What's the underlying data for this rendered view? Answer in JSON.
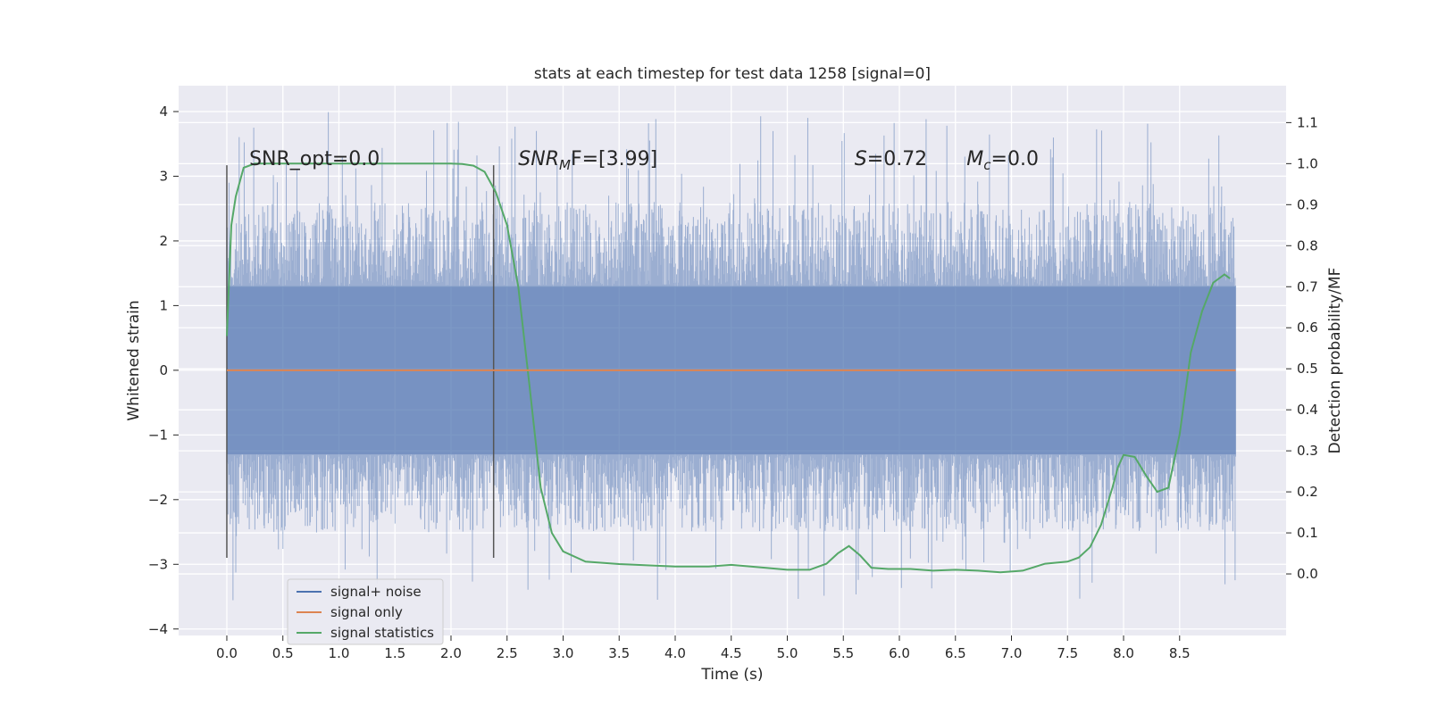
{
  "chart_data": {
    "type": "line",
    "title": "stats at each timestep for test data 1258 [signal=0]",
    "xlabel": "Time (s)",
    "ylabel": "Whitened strain",
    "y2label": "Detection probability/MF",
    "xlim": [
      -0.43,
      9.45
    ],
    "ylim": [
      -4.1,
      4.4
    ],
    "y2lim": [
      -0.15,
      1.19
    ],
    "grid": true,
    "legend_position": "bottom-left",
    "x_ticks": [
      0.0,
      0.5,
      1.0,
      1.5,
      2.0,
      2.5,
      3.0,
      3.5,
      4.0,
      4.5,
      5.0,
      5.5,
      6.0,
      6.5,
      7.0,
      7.5,
      8.0,
      8.5
    ],
    "x_tick_labels": [
      "0.0",
      "0.5",
      "1.0",
      "1.5",
      "2.0",
      "2.5",
      "3.0",
      "3.5",
      "4.0",
      "4.5",
      "5.0",
      "5.5",
      "6.0",
      "6.5",
      "7.0",
      "7.5",
      "8.0",
      "8.5"
    ],
    "y_ticks": [
      -4,
      -3,
      -2,
      -1,
      0,
      1,
      2,
      3,
      4
    ],
    "y_tick_labels": [
      "−4",
      "−3",
      "−2",
      "−1",
      "0",
      "1",
      "2",
      "3",
      "4"
    ],
    "y2_ticks": [
      0.0,
      0.1,
      0.2,
      0.3,
      0.4,
      0.5,
      0.6,
      0.7,
      0.8,
      0.9,
      1.0,
      1.1
    ],
    "y2_tick_labels": [
      "0.0",
      "0.1",
      "0.2",
      "0.3",
      "0.4",
      "0.5",
      "0.6",
      "0.7",
      "0.8",
      "0.9",
      "1.0",
      "1.1"
    ],
    "noise": {
      "t_start": 0.0,
      "t_end": 9.0,
      "n_samples": 1800,
      "core_amplitude": 1.3,
      "typical_max": 2.6,
      "typical_min": -2.5,
      "peak_max": 4.0,
      "peak_min": -3.6,
      "color": "#4c72b0"
    },
    "series": [
      {
        "name": "signal statistics",
        "axis": "right",
        "color": "#55a868",
        "x": [
          0.0,
          0.04,
          0.08,
          0.15,
          0.25,
          0.5,
          1.0,
          1.5,
          2.0,
          2.1,
          2.2,
          2.3,
          2.4,
          2.5,
          2.6,
          2.7,
          2.8,
          2.9,
          3.0,
          3.2,
          3.5,
          4.0,
          4.3,
          4.5,
          4.8,
          5.0,
          5.2,
          5.35,
          5.45,
          5.55,
          5.65,
          5.75,
          5.9,
          6.1,
          6.3,
          6.5,
          6.7,
          6.9,
          7.1,
          7.3,
          7.5,
          7.6,
          7.7,
          7.8,
          7.9,
          7.95,
          8.0,
          8.1,
          8.2,
          8.3,
          8.4,
          8.5,
          8.6,
          8.7,
          8.8,
          8.9,
          8.95
        ],
        "values": [
          0.58,
          0.85,
          0.92,
          0.99,
          1.0,
          1.0,
          1.0,
          1.0,
          1.0,
          0.999,
          0.995,
          0.98,
          0.93,
          0.85,
          0.7,
          0.46,
          0.21,
          0.1,
          0.055,
          0.03,
          0.024,
          0.018,
          0.018,
          0.022,
          0.015,
          0.01,
          0.01,
          0.025,
          0.05,
          0.068,
          0.045,
          0.015,
          0.012,
          0.012,
          0.008,
          0.01,
          0.008,
          0.004,
          0.008,
          0.025,
          0.03,
          0.04,
          0.065,
          0.12,
          0.21,
          0.26,
          0.29,
          0.285,
          0.24,
          0.2,
          0.21,
          0.34,
          0.54,
          0.64,
          0.71,
          0.73,
          0.72
        ]
      },
      {
        "name": "signal only",
        "axis": "left",
        "color": "#dd8452",
        "x": [
          0.0,
          9.0
        ],
        "values": [
          0.0,
          0.0
        ]
      }
    ],
    "vlines": [
      {
        "x": 0.0,
        "ymin": -2.9,
        "ymax": 3.17
      },
      {
        "x": 2.38,
        "ymin": -2.9,
        "ymax": 3.17
      }
    ],
    "annotations": [
      {
        "x": 0.2,
        "y": 3.17,
        "base": "SNR_opt=0.0",
        "italic": "",
        "sub": "",
        "rest": ""
      },
      {
        "x": 2.6,
        "y": 3.17,
        "base": "",
        "italic": "SNR",
        "sub": "M",
        "rest": "F=[3.99]"
      },
      {
        "x": 5.6,
        "y": 3.17,
        "base": "",
        "italic": "S",
        "sub": "",
        "rest": "=0.72"
      },
      {
        "x": 6.6,
        "y": 3.17,
        "base": "",
        "italic": "M",
        "sub": "c",
        "rest": "=0.0"
      }
    ],
    "legend": [
      {
        "label": "signal+ noise",
        "color": "#4c72b0"
      },
      {
        "label": "signal only",
        "color": "#dd8452"
      },
      {
        "label": "signal statistics",
        "color": "#55a868"
      }
    ]
  }
}
